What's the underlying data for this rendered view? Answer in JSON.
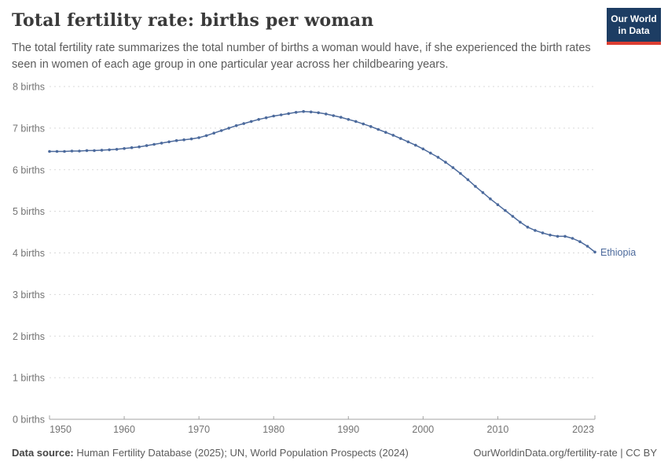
{
  "header": {
    "title": "Total fertility rate: births per woman",
    "subtitle": "The total fertility rate summarizes the total number of births a woman would have, if she experienced the birth rates seen in women of each age group in one particular year across her childbearing years.",
    "logo": {
      "line1": "Our World",
      "line2": "in Data"
    }
  },
  "chart_data": {
    "type": "line",
    "title": "Total fertility rate: births per woman",
    "xlabel": "",
    "ylabel": "",
    "xlim": [
      1950,
      2023
    ],
    "ylim": [
      0,
      8
    ],
    "x_ticks": [
      1950,
      1960,
      1970,
      1980,
      1990,
      2000,
      2010,
      2023
    ],
    "y_ticks": [
      0,
      1,
      2,
      3,
      4,
      5,
      6,
      7,
      8
    ],
    "y_tick_suffix": " births",
    "grid": "dashed-horizontal",
    "legend_position": "end-of-line",
    "series": [
      {
        "name": "Ethiopia",
        "color": "#4C6A9C",
        "x": [
          1950,
          1951,
          1952,
          1953,
          1954,
          1955,
          1956,
          1957,
          1958,
          1959,
          1960,
          1961,
          1962,
          1963,
          1964,
          1965,
          1966,
          1967,
          1968,
          1969,
          1970,
          1971,
          1972,
          1973,
          1974,
          1975,
          1976,
          1977,
          1978,
          1979,
          1980,
          1981,
          1982,
          1983,
          1984,
          1985,
          1986,
          1987,
          1988,
          1989,
          1990,
          1991,
          1992,
          1993,
          1994,
          1995,
          1996,
          1997,
          1998,
          1999,
          2000,
          2001,
          2002,
          2003,
          2004,
          2005,
          2006,
          2007,
          2008,
          2009,
          2010,
          2011,
          2012,
          2013,
          2014,
          2015,
          2016,
          2017,
          2018,
          2019,
          2020,
          2021,
          2022,
          2023
        ],
        "values": [
          6.44,
          6.44,
          6.44,
          6.45,
          6.45,
          6.46,
          6.46,
          6.47,
          6.48,
          6.49,
          6.51,
          6.53,
          6.55,
          6.58,
          6.61,
          6.64,
          6.67,
          6.7,
          6.72,
          6.74,
          6.77,
          6.82,
          6.88,
          6.94,
          7.0,
          7.06,
          7.11,
          7.16,
          7.21,
          7.25,
          7.29,
          7.32,
          7.35,
          7.38,
          7.4,
          7.39,
          7.37,
          7.34,
          7.3,
          7.26,
          7.21,
          7.16,
          7.1,
          7.04,
          6.97,
          6.9,
          6.83,
          6.75,
          6.67,
          6.59,
          6.5,
          6.4,
          6.3,
          6.18,
          6.05,
          5.91,
          5.76,
          5.6,
          5.45,
          5.3,
          5.16,
          5.02,
          4.88,
          4.74,
          4.62,
          4.54,
          4.48,
          4.43,
          4.4,
          4.4,
          4.35,
          4.27,
          4.16,
          4.02
        ]
      }
    ]
  },
  "footer": {
    "data_source_label": "Data source:",
    "data_source_text": " Human Fertility Database (2025); UN, World Population Prospects (2024)",
    "citation": "OurWorldinData.org/fertility-rate | CC BY"
  },
  "colors": {
    "line": "#4C6A9C",
    "grid": "#d9d9d9",
    "axis": "#a3a3a3",
    "tick_label": "#737373",
    "title": "#3a3a3a",
    "subtitle": "#5b5b5b",
    "logo_bg": "#1d3d63",
    "logo_accent": "#dc3e32"
  }
}
